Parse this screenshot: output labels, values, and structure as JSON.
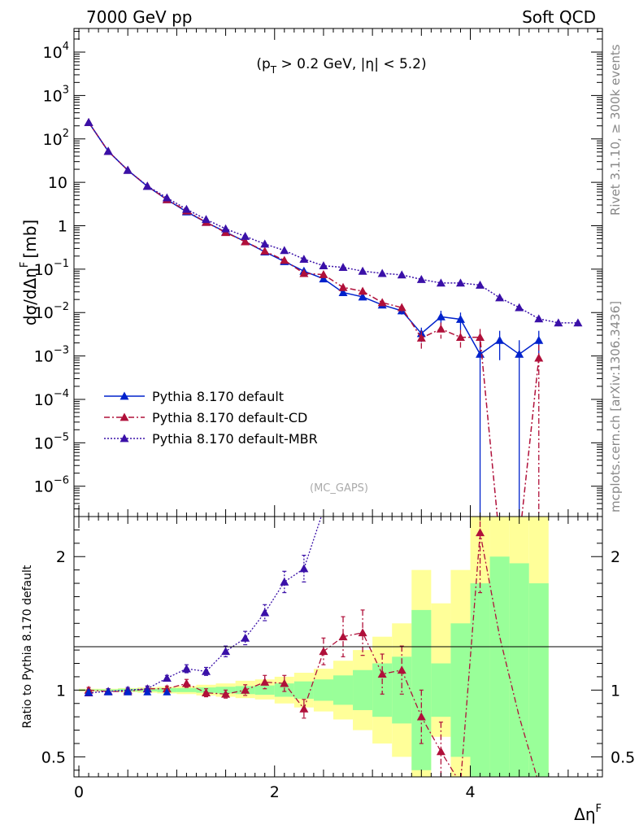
{
  "header": {
    "left": "7000 GeV pp",
    "right": "Soft QCD"
  },
  "side": {
    "rivet": "Rivet 3.1.10, ≥ 300k events",
    "mcplots": "mcplots.cern.ch [arXiv:1306.3436]"
  },
  "chart_data": [
    {
      "type": "line",
      "panel": "main",
      "ylabel": "dσ/dΔηF [mb]",
      "ylabel_main": "dσ/dΔη",
      "ylabel_sup": "F",
      "ylabel_unit": "[mb]",
      "annotation": "(pT > 0.2 GeV, |η| < 5.2)",
      "ann_pre": "(p",
      "ann_sub": "T",
      "ann_post": " > 0.2 GeV, |η| < 5.2)",
      "watermark": "(MC_GAPS)",
      "yscale": "log",
      "ylim": [
        2e-07,
        35000.0
      ],
      "xlim": [
        -0.05,
        5.35
      ],
      "legend_position": "bottom-left",
      "yticks": [
        {
          "v": 10000.0,
          "base": "10",
          "exp": "4"
        },
        {
          "v": 1000.0,
          "base": "10",
          "exp": "3"
        },
        {
          "v": 100.0,
          "base": "10",
          "exp": "2"
        },
        {
          "v": 10,
          "base": "10",
          "exp": ""
        },
        {
          "v": 1,
          "base": "1",
          "exp": ""
        },
        {
          "v": 0.1,
          "base": "10",
          "exp": "−1"
        },
        {
          "v": 0.01,
          "base": "10",
          "exp": "−2"
        },
        {
          "v": 0.001,
          "base": "10",
          "exp": "−3"
        },
        {
          "v": 0.0001,
          "base": "10",
          "exp": "−4"
        },
        {
          "v": 1e-05,
          "base": "10",
          "exp": "−5"
        },
        {
          "v": 1e-06,
          "base": "10",
          "exp": "−6"
        }
      ],
      "series": [
        {
          "name": "Pythia 8.170 default",
          "color": "#0022cc",
          "style": "solid",
          "x": [
            0.1,
            0.3,
            0.5,
            0.7,
            0.9,
            1.1,
            1.3,
            1.5,
            1.7,
            1.9,
            2.1,
            2.3,
            2.5,
            2.7,
            2.9,
            3.1,
            3.3,
            3.5,
            3.7,
            3.9,
            4.1,
            4.3,
            4.5,
            4.7
          ],
          "y": [
            240,
            52,
            19,
            8.1,
            4.0,
            2.1,
            1.2,
            0.72,
            0.43,
            0.25,
            0.15,
            0.09,
            0.06,
            0.029,
            0.023,
            0.015,
            0.011,
            0.0033,
            0.008,
            0.007,
            0.0011,
            0.0023,
            0.0011,
            0.0023
          ],
          "err": [
            8,
            2,
            0.6,
            0.3,
            0.15,
            0.08,
            0.05,
            0.03,
            0.02,
            0.012,
            0.008,
            0.006,
            0.005,
            0.003,
            0.003,
            0.002,
            0.002,
            0.0012,
            0.003,
            0.003,
            0.0012,
            0.0015,
            0.0012,
            0.0015
          ]
        },
        {
          "name": "Pythia 8.170 default-CD",
          "color": "#b0103a",
          "style": "dashdot",
          "x": [
            0.1,
            0.3,
            0.5,
            0.7,
            0.9,
            1.1,
            1.3,
            1.5,
            1.7,
            1.9,
            2.1,
            2.3,
            2.5,
            2.7,
            2.9,
            3.1,
            3.3,
            3.5,
            3.7,
            3.9,
            4.1,
            4.3,
            4.5,
            4.7
          ],
          "y": [
            240,
            52,
            19,
            8.2,
            4.0,
            2.2,
            1.2,
            0.7,
            0.43,
            0.26,
            0.16,
            0.08,
            0.075,
            0.038,
            0.031,
            0.017,
            0.013,
            0.0026,
            0.0042,
            0.0027,
            0.0027,
            0,
            0,
            0.0009
          ],
          "err": [
            8,
            2,
            0.6,
            0.3,
            0.15,
            0.08,
            0.05,
            0.03,
            0.02,
            0.012,
            0.008,
            0.006,
            0.005,
            0.004,
            0.004,
            0.003,
            0.003,
            0.0012,
            0.0017,
            0.0013,
            0.0015,
            0,
            0,
            0.0009
          ]
        },
        {
          "name": "Pythia 8.170 default-MBR",
          "color": "#3a10a8",
          "style": "dotted",
          "x": [
            0.1,
            0.3,
            0.5,
            0.7,
            0.9,
            1.1,
            1.3,
            1.5,
            1.7,
            1.9,
            2.1,
            2.3,
            2.5,
            2.7,
            2.9,
            3.1,
            3.3,
            3.5,
            3.7,
            3.9,
            4.1,
            4.3,
            4.5,
            4.7,
            4.9,
            5.1
          ],
          "y": [
            240,
            52,
            19,
            8.2,
            4.4,
            2.4,
            1.4,
            0.85,
            0.57,
            0.38,
            0.27,
            0.17,
            0.12,
            0.11,
            0.09,
            0.08,
            0.074,
            0.058,
            0.048,
            0.048,
            0.043,
            0.022,
            0.013,
            0.0072,
            0.0058,
            0.0058
          ],
          "err": [
            8,
            2,
            0.6,
            0.3,
            0.15,
            0.08,
            0.05,
            0.03,
            0.02,
            0.012,
            0.008,
            0.006,
            0.005,
            0.005,
            0.004,
            0.004,
            0.004,
            0.003,
            0.003,
            0.003,
            0.003,
            0.002,
            0.002,
            0.0012,
            0.001,
            0.001
          ]
        }
      ]
    },
    {
      "type": "line",
      "panel": "ratio",
      "ylabel": "Ratio to Pythia 8.170 default",
      "ylim": [
        0.35,
        2.3
      ],
      "xlim": [
        -0.05,
        5.35
      ],
      "xlabel": "ΔηF",
      "xlabel_main": "Δη",
      "xlabel_sup": "F",
      "xticks": [
        0,
        2,
        4
      ],
      "yticks": [
        0.5,
        1,
        2
      ],
      "bands": {
        "edges": [
          0,
          0.2,
          0.4,
          0.6,
          0.8,
          1.0,
          1.2,
          1.4,
          1.6,
          1.8,
          2.0,
          2.2,
          2.4,
          2.6,
          2.8,
          3.0,
          3.2,
          3.4,
          3.6,
          3.8,
          4.0,
          4.2,
          4.4,
          4.6,
          4.8
        ],
        "yellow": {
          "color": "#ffff99",
          "lo": [
            0.99,
            0.99,
            0.985,
            0.98,
            0.975,
            0.97,
            0.96,
            0.95,
            0.94,
            0.93,
            0.9,
            0.87,
            0.84,
            0.78,
            0.7,
            0.6,
            0.5,
            0.3,
            0.65,
            0.35,
            0.35,
            0.35,
            0.35,
            0.35
          ],
          "hi": [
            1.01,
            1.01,
            1.015,
            1.02,
            1.025,
            1.03,
            1.04,
            1.05,
            1.07,
            1.08,
            1.1,
            1.13,
            1.16,
            1.22,
            1.3,
            1.4,
            1.5,
            1.9,
            1.65,
            1.9,
            2.3,
            2.3,
            2.3,
            2.3
          ]
        },
        "green": {
          "color": "#99ff99",
          "lo": [
            0.995,
            0.995,
            0.99,
            0.99,
            0.985,
            0.985,
            0.98,
            0.975,
            0.97,
            0.965,
            0.95,
            0.935,
            0.92,
            0.89,
            0.85,
            0.8,
            0.75,
            0.4,
            0.8,
            0.5,
            0.35,
            0.35,
            0.35,
            0.35
          ],
          "hi": [
            1.005,
            1.005,
            1.01,
            1.01,
            1.015,
            1.015,
            1.02,
            1.025,
            1.03,
            1.035,
            1.05,
            1.065,
            1.08,
            1.11,
            1.15,
            1.2,
            1.25,
            1.6,
            1.2,
            1.5,
            1.8,
            2.0,
            1.95,
            1.8
          ]
        }
      },
      "series": [
        {
          "name": "Pythia 8.170 default-CD",
          "color": "#b0103a",
          "style": "dashdot",
          "x": [
            0.1,
            0.3,
            0.5,
            0.7,
            0.9,
            1.1,
            1.3,
            1.5,
            1.7,
            1.9,
            2.1,
            2.3,
            2.5,
            2.7,
            2.9,
            3.1,
            3.3,
            3.5,
            3.7,
            3.9,
            4.1,
            4.3,
            4.5,
            4.7
          ],
          "y": [
            1.0,
            0.99,
            0.99,
            1.01,
            1.01,
            1.05,
            0.98,
            0.97,
            1.0,
            1.06,
            1.05,
            0.86,
            1.29,
            1.4,
            1.43,
            1.12,
            1.15,
            0.8,
            0.54,
            0.3,
            2.18,
            1.4,
            0.8,
            0.3
          ],
          "err": [
            0.02,
            0.02,
            0.02,
            0.02,
            0.02,
            0.03,
            0.03,
            0.03,
            0.04,
            0.05,
            0.06,
            0.07,
            0.1,
            0.15,
            0.17,
            0.15,
            0.18,
            0.2,
            0.22,
            0.15,
            0.45,
            0,
            0,
            0
          ],
          "drawn": [
            true,
            true,
            true,
            true,
            true,
            true,
            true,
            true,
            true,
            true,
            true,
            true,
            true,
            true,
            true,
            true,
            true,
            true,
            true,
            false,
            true,
            false,
            false,
            false
          ]
        },
        {
          "name": "Pythia 8.170 default-MBR",
          "color": "#3a10a8",
          "style": "dotted",
          "x": [
            0.1,
            0.3,
            0.5,
            0.7,
            0.9,
            1.1,
            1.3,
            1.5,
            1.7,
            1.9,
            2.1,
            2.3,
            2.5
          ],
          "y": [
            0.98,
            0.99,
            1.0,
            1.01,
            1.09,
            1.16,
            1.14,
            1.29,
            1.39,
            1.58,
            1.81,
            1.91,
            2.35
          ],
          "err": [
            0.02,
            0.02,
            0.02,
            0.02,
            0.02,
            0.03,
            0.03,
            0.04,
            0.05,
            0.06,
            0.08,
            0.1,
            0.15
          ],
          "drawn": [
            true,
            true,
            true,
            true,
            true,
            true,
            true,
            true,
            true,
            true,
            true,
            true,
            false
          ]
        }
      ]
    }
  ]
}
